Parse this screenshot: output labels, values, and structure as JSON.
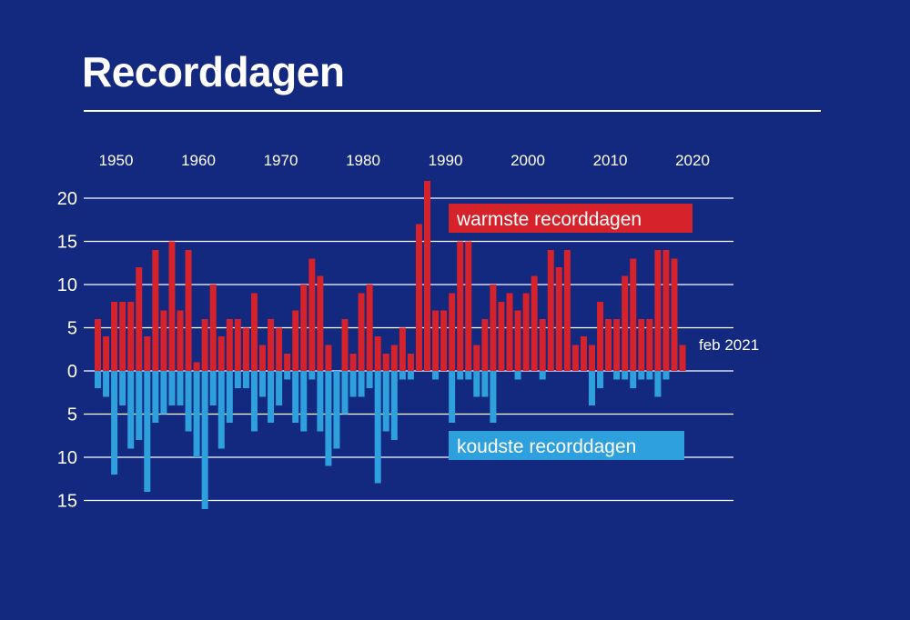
{
  "title": "Recorddagen",
  "chart_data": {
    "type": "bar",
    "x_start": 1950,
    "x_ticks": [
      1950,
      1960,
      1970,
      1980,
      1990,
      2000,
      2010,
      2020
    ],
    "y_ticks_top": [
      0,
      5,
      10,
      15,
      20
    ],
    "y_ticks_bottom": [
      5,
      10,
      15
    ],
    "ylim": [
      -15,
      21
    ],
    "series": [
      {
        "name": "warmste recorddagen",
        "color": "#d6222a",
        "values": [
          6,
          4,
          8,
          8,
          8,
          12,
          4,
          14,
          7,
          15,
          7,
          14,
          1,
          6,
          10,
          4,
          6,
          6,
          5,
          9,
          3,
          6,
          5,
          2,
          7,
          10,
          13,
          11,
          3,
          0,
          6,
          2,
          9,
          10,
          4,
          2,
          3,
          5,
          2,
          17,
          22,
          7,
          7,
          9,
          15,
          15,
          3,
          6,
          10,
          8,
          9,
          7,
          9,
          11,
          6,
          14,
          12,
          14,
          3,
          4,
          3,
          8,
          6,
          6,
          11,
          13,
          6,
          6,
          14,
          14,
          13,
          3
        ]
      },
      {
        "name": "koudste recorddagen",
        "color": "#2ea0de",
        "values": [
          2,
          3,
          12,
          4,
          9,
          8,
          14,
          6,
          5,
          4,
          4,
          7,
          10,
          16,
          4,
          9,
          6,
          2,
          2,
          7,
          3,
          6,
          4,
          1,
          6,
          7,
          1,
          7,
          11,
          9,
          5,
          3,
          3,
          2,
          13,
          7,
          8,
          1,
          1,
          0,
          0,
          1,
          0,
          6,
          1,
          1,
          3,
          3,
          6,
          0,
          0,
          1,
          0,
          0,
          1,
          0,
          0,
          0,
          0,
          0,
          4,
          2,
          0,
          1,
          1,
          2,
          1,
          1,
          3,
          1,
          0,
          0
        ]
      }
    ],
    "annotations": {
      "latest": "feb 2021"
    }
  }
}
